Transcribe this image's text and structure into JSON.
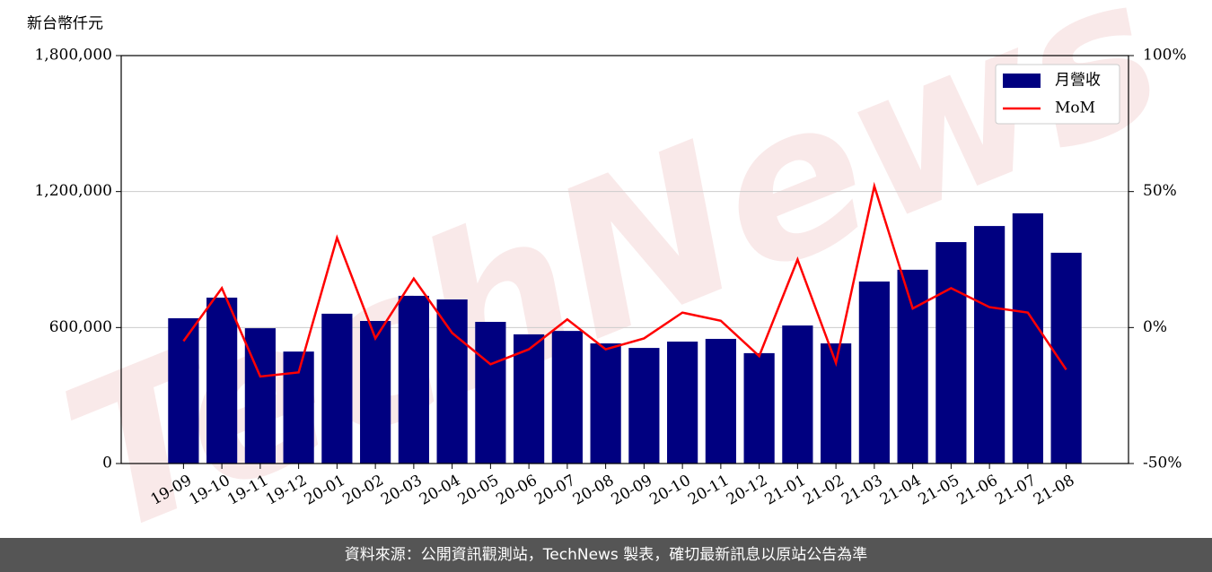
{
  "chart_data": {
    "type": "bar_line",
    "y_axis_label": "新台幣仟元",
    "watermark": "TechNews",
    "footer": "資料來源：公開資訊觀測站，TechNews 製表，確切最新訊息以原站公告為準",
    "categories": [
      "19-09",
      "19-10",
      "19-11",
      "19-12",
      "20-01",
      "20-02",
      "20-03",
      "20-04",
      "20-05",
      "20-06",
      "20-07",
      "20-08",
      "20-09",
      "20-10",
      "20-11",
      "20-12",
      "21-01",
      "21-02",
      "21-03",
      "21-04",
      "21-05",
      "21-06",
      "21-07",
      "21-08"
    ],
    "series": [
      {
        "name": "月營收",
        "type": "bar",
        "color": "#000080",
        "values": [
          641000,
          732000,
          597000,
          494000,
          661000,
          629000,
          740000,
          724000,
          625000,
          570000,
          585000,
          530000,
          510000,
          538000,
          550000,
          487000,
          609000,
          530000,
          803000,
          855000,
          977000,
          1048000,
          1104000,
          930000
        ]
      },
      {
        "name": "MoM",
        "type": "line",
        "axis": "y2",
        "color": "#ff0000",
        "values": [
          -5,
          14.5,
          -18,
          -16.5,
          33,
          -4,
          18,
          -2,
          -13.5,
          -8,
          3,
          -8,
          -4,
          5.5,
          2.5,
          -10.5,
          25,
          -13,
          52,
          7,
          14.5,
          7.5,
          5.5,
          -15.5
        ]
      }
    ],
    "ylim": [
      0,
      1800000
    ],
    "yticks": [
      0,
      {
        "value": 600000,
        "label": "600,000"
      },
      {
        "value": 1200000,
        "label": "1,200,000"
      },
      {
        "value": 1800000,
        "label": "1,800,000"
      }
    ],
    "y2lim": [
      -50,
      100
    ],
    "y2ticks": [
      {
        "value": -50,
        "label": "-50%"
      },
      {
        "value": 0,
        "label": "0%"
      },
      {
        "value": 50,
        "label": "50%"
      },
      {
        "value": 100,
        "label": "100%"
      }
    ],
    "grid": true,
    "legend": "upper right"
  }
}
